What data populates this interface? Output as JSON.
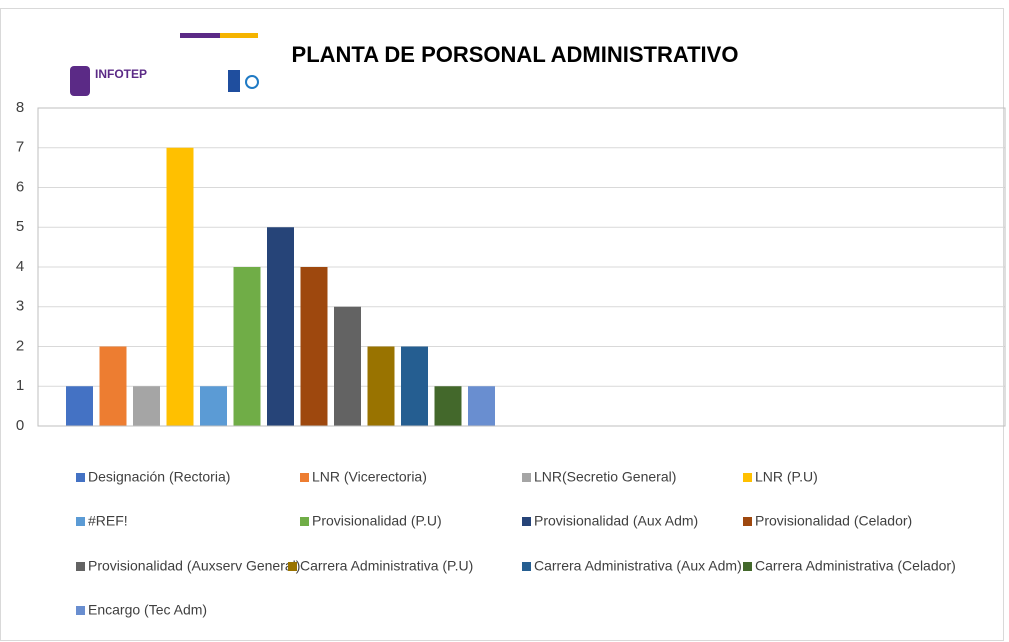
{
  "chart_data": {
    "type": "bar",
    "title": "PLANTA DE PORSONAL ADMINISTRATIVO",
    "logo": "INFOTEP",
    "categories": [
      null
    ],
    "series": [
      {
        "name": "Designación (Rectoria)",
        "color": "#4472c4",
        "values": [
          1
        ]
      },
      {
        "name": "LNR (Vicerectoria)",
        "color": "#ed7d31",
        "values": [
          2
        ]
      },
      {
        "name": "LNR(Secretio General)",
        "color": "#a5a5a5",
        "values": [
          1
        ]
      },
      {
        "name": "LNR (P.U)",
        "color": "#ffc000",
        "values": [
          7
        ]
      },
      {
        "name": "#REF!",
        "color": "#5b9bd5",
        "values": [
          1
        ]
      },
      {
        "name": "Provisionalidad (P.U)",
        "color": "#70ad47",
        "values": [
          4
        ]
      },
      {
        "name": "Provisionalidad (Aux Adm)",
        "color": "#264478",
        "values": [
          5
        ]
      },
      {
        "name": "Provisionalidad (Celador)",
        "color": "#9e480e",
        "values": [
          4
        ]
      },
      {
        "name": "Provisionalidad (Auxserv General)",
        "color": "#636363",
        "values": [
          3
        ]
      },
      {
        "name": "Carrera Administrativa (P.U)",
        "color": "#997300",
        "values": [
          2
        ]
      },
      {
        "name": "Carrera Administrativa (Aux Adm)",
        "color": "#255e91",
        "values": [
          2
        ]
      },
      {
        "name": "Carrera Administrativa (Celador)",
        "color": "#43682b",
        "values": [
          1
        ]
      },
      {
        "name": "Encargo (Tec Adm)",
        "color": "#698ed0",
        "values": [
          1
        ]
      }
    ],
    "ylim": [
      0,
      8
    ],
    "yticks": [
      0,
      1,
      2,
      3,
      4,
      5,
      6,
      7,
      8
    ],
    "grid": true,
    "legend": "bottom"
  }
}
